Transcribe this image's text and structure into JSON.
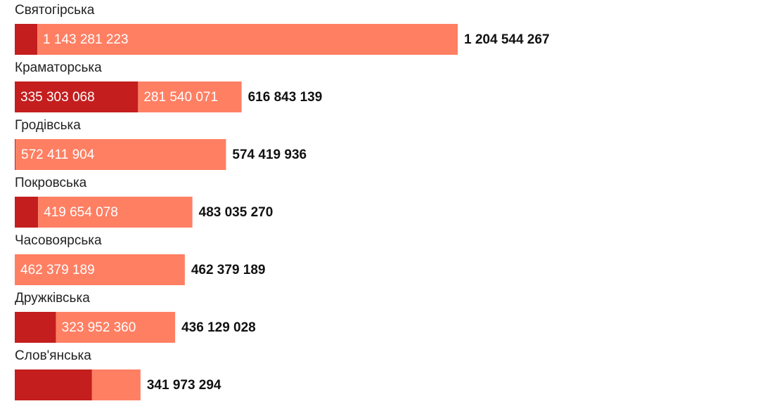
{
  "chart_data": {
    "type": "bar",
    "orientation": "horizontal",
    "stacked": true,
    "categories": [
      "Святогірська",
      "Краматорська",
      "Гродівська",
      "Покровська",
      "Часовоярська",
      "Дружківська",
      "Слов'янська"
    ],
    "series": [
      {
        "color": "#c41e1e",
        "values": [
          61263044,
          335303068,
          2008032,
          63381192,
          0,
          112176668,
          210000000
        ],
        "value_labels": [
          null,
          "335 303 068",
          null,
          null,
          null,
          null,
          null
        ]
      },
      {
        "color": "#ff7f63",
        "values": [
          1143281223,
          281540071,
          572411904,
          419654078,
          462379189,
          323952360,
          131973294
        ],
        "value_labels": [
          "1 143 281 223",
          "281 540 071",
          "572 411 904",
          "419 654 078",
          "462 379 189",
          "323 952 360",
          null
        ]
      }
    ],
    "totals": [
      1204544267,
      616843139,
      574419936,
      483035270,
      462379189,
      436129028,
      341973294
    ],
    "total_labels": [
      "1 204 544 267",
      "616 843 139",
      "574 419 936",
      "483 035 270",
      "462 379 189",
      "436 129 028",
      "341 973 294"
    ]
  }
}
